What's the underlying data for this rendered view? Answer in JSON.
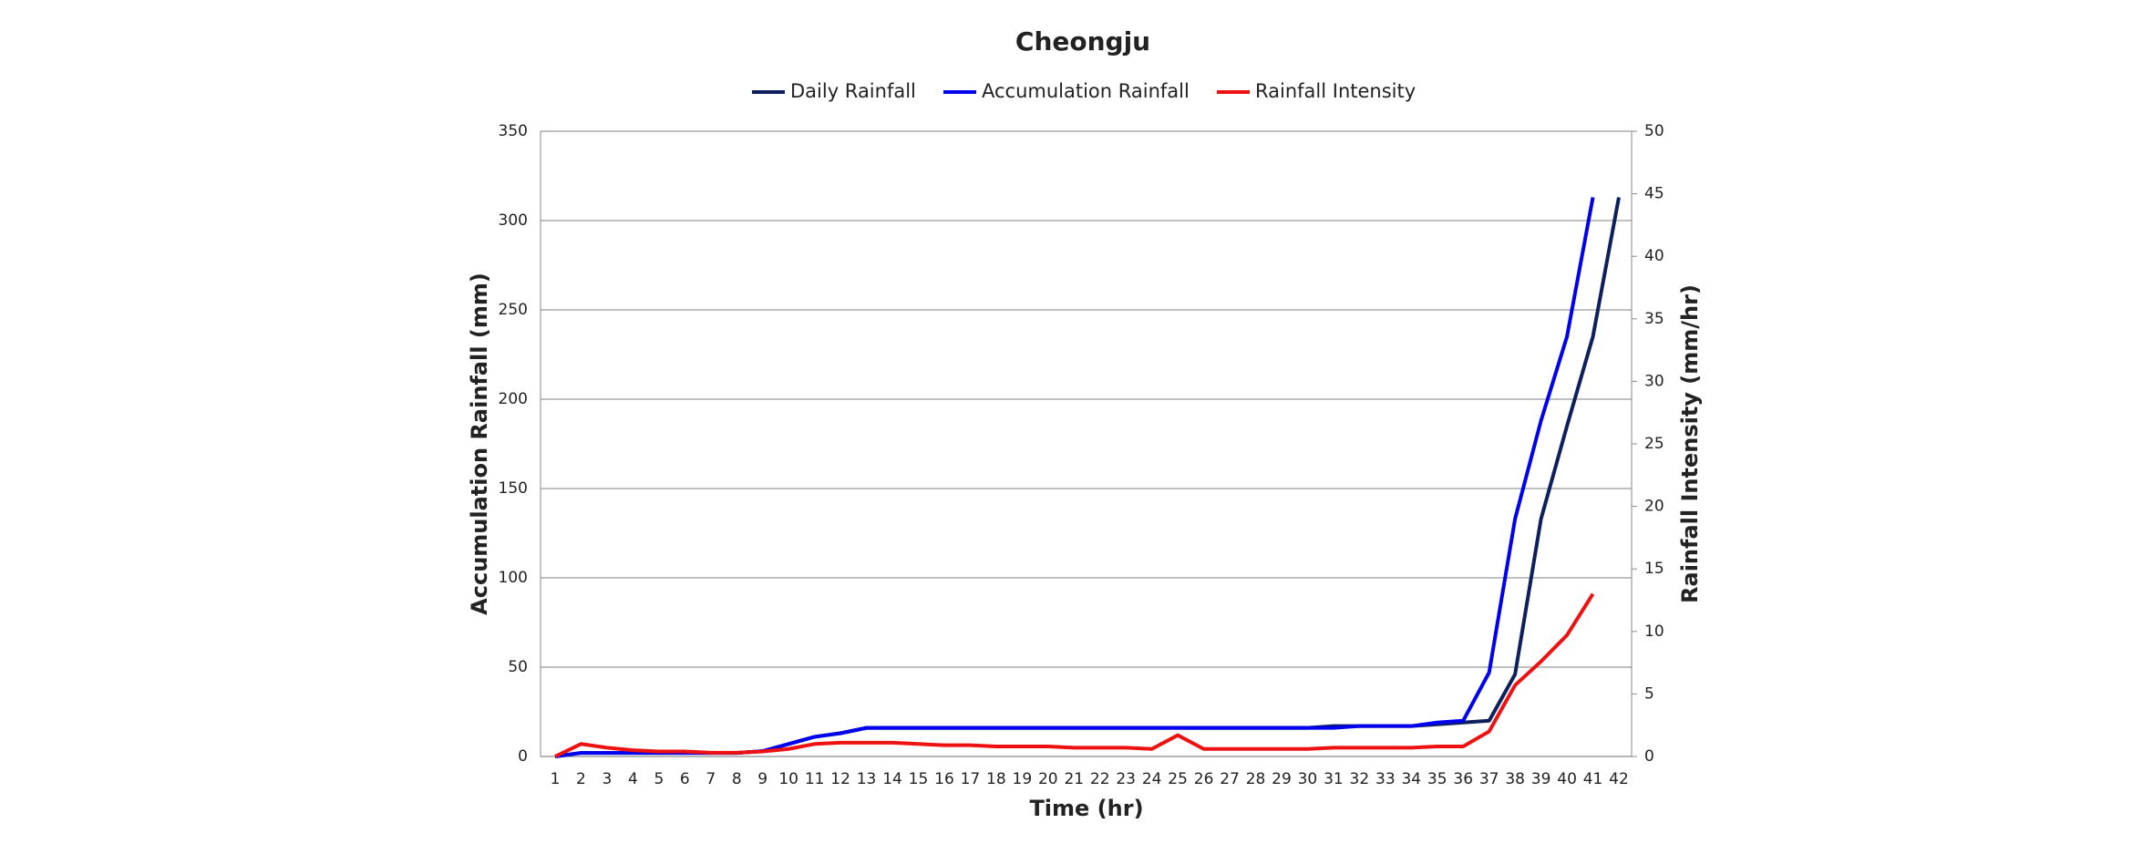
{
  "chart_data": {
    "type": "line",
    "title": "Cheongju",
    "x_label": "Time (hr)",
    "y_label": "Accumulation Rainfall (mm)",
    "y2_label": "Rainfall Intensity (mm/hr)",
    "categories": [
      1,
      2,
      3,
      4,
      5,
      6,
      7,
      8,
      9,
      10,
      11,
      12,
      13,
      14,
      15,
      16,
      17,
      18,
      19,
      20,
      21,
      22,
      23,
      24,
      25,
      26,
      27,
      28,
      29,
      30,
      31,
      32,
      33,
      34,
      35,
      36,
      37,
      38,
      39,
      40,
      41,
      42
    ],
    "series": [
      {
        "name": "Daily Rainfall",
        "color": "#0d1f5c",
        "values": [
          0,
          2,
          2,
          2,
          2,
          2,
          2,
          2,
          3,
          7,
          11,
          13,
          16,
          16,
          16,
          16,
          16,
          16,
          16,
          16,
          16,
          16,
          16,
          16,
          16,
          16,
          16,
          16,
          16,
          16,
          17,
          17,
          17,
          17,
          18,
          19,
          20,
          46,
          133,
          185,
          235,
          313
        ]
      },
      {
        "name": "Accumulation Rainfall",
        "color": "#0000ee",
        "values": [
          0,
          2,
          2,
          2,
          2,
          2,
          2,
          2,
          3,
          7,
          11,
          13,
          16,
          16,
          16,
          16,
          16,
          16,
          16,
          16,
          16,
          16,
          16,
          16,
          16,
          16,
          16,
          16,
          16,
          16,
          16,
          17,
          17,
          17,
          19,
          20,
          47,
          133,
          188,
          235,
          313,
          null
        ]
      },
      {
        "name": "Rainfall Intensity",
        "color": "#ee1111",
        "axis": "y2",
        "values": [
          0,
          1.0,
          0.7,
          0.5,
          0.4,
          0.4,
          0.3,
          0.3,
          0.4,
          0.6,
          1.0,
          1.1,
          1.1,
          1.1,
          1.0,
          0.9,
          0.9,
          0.8,
          0.8,
          0.8,
          0.7,
          0.7,
          0.7,
          0.6,
          1.7,
          0.6,
          0.6,
          0.6,
          0.6,
          0.6,
          0.7,
          0.7,
          0.7,
          0.7,
          0.8,
          0.8,
          2.0,
          5.7,
          7.6,
          9.7,
          13.0,
          null
        ]
      }
    ],
    "ylim": [
      0,
      350
    ],
    "yticks": [
      0,
      50,
      100,
      150,
      200,
      250,
      300,
      350
    ],
    "y2lim": [
      0,
      50
    ],
    "y2ticks": [
      0,
      5,
      10,
      15,
      20,
      25,
      30,
      35,
      40,
      45,
      50
    ],
    "grid": true,
    "legend": "top"
  }
}
